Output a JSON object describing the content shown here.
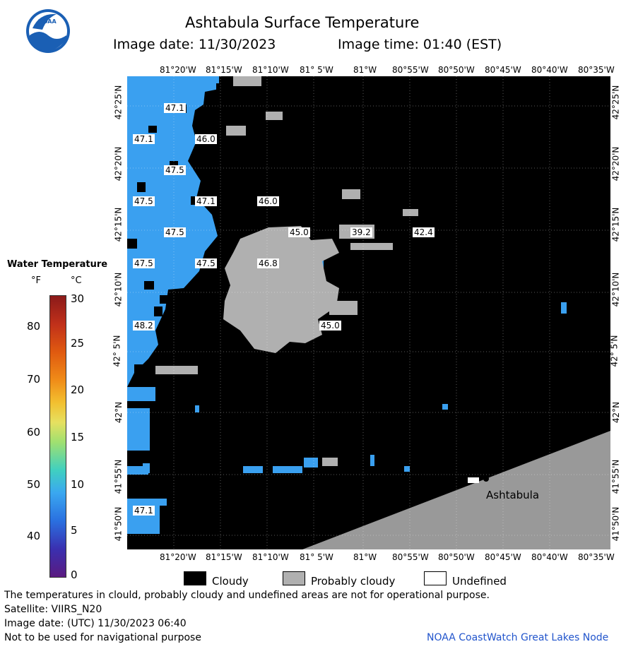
{
  "header": {
    "title": "Ashtabula Surface Temperature",
    "image_date_label": "Image date: 11/30/2023",
    "image_time_label": "Image time: 01:40 (EST)"
  },
  "logo": {
    "text": "NOAA"
  },
  "map": {
    "lon_ticks": [
      "81°20'W",
      "81°15'W",
      "81°10'W",
      "81° 5'W",
      "81°W",
      "80°55'W",
      "80°50'W",
      "80°45'W",
      "80°40'W",
      "80°35'W"
    ],
    "lat_ticks": [
      "42°25'N",
      "42°20'N",
      "42°15'N",
      "42°10'N",
      "42° 5'N",
      "42°N",
      "41°55'N",
      "41°50'N"
    ],
    "temp_labels": [
      "47.1",
      "47.1",
      "46.0",
      "47.5",
      "47.5",
      "47.1",
      "46.0",
      "47.5",
      "45.0",
      "39.2",
      "42.4",
      "47.5",
      "47.5",
      "46.8",
      "48.2",
      "45.0",
      "47.1"
    ],
    "city": "Ashtabula",
    "colors": {
      "water": "#3aa0f0",
      "cloud": "#000000",
      "probably_cloudy": "#b0b0b0",
      "land": "#999999"
    }
  },
  "colorbar": {
    "title": "Water Temperature",
    "unit_f": "°F",
    "unit_c": "°C",
    "f_ticks": [
      "80",
      "70",
      "60",
      "50",
      "40"
    ],
    "c_ticks": [
      "30",
      "25",
      "20",
      "15",
      "10",
      "5",
      "0"
    ]
  },
  "legend": {
    "cloudy": "Cloudy",
    "probably_cloudy": "Probably cloudy",
    "undefined": "Undefined"
  },
  "footer": {
    "line1": "The temperatures in clould, probably cloudy and undefined areas are not for operational purpose.",
    "line2": "Satellite: VIIRS_N20",
    "line3": "Image date: (UTC) 11/30/2023  06:40",
    "line4": "Not to be used for navigational purpose",
    "credit": "NOAA CoastWatch Great Lakes Node"
  }
}
